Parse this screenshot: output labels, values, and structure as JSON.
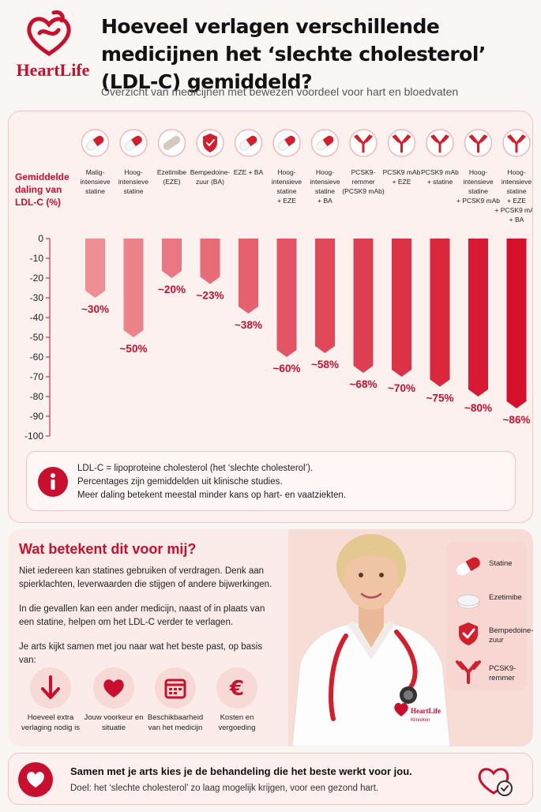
{
  "header": {
    "brand": "HeartLife",
    "title": "Hoeveel verlagen verschillende medicijnen het ‘slechte cholesterol’ (LDL-C) gemiddeld?",
    "subtitle": "Overzicht van medicijnen met bewezen voordeel voor hart en bloedvaten"
  },
  "chart_data": {
    "type": "bar",
    "ylabel": "Gemiddelde daling van LDL-C (%)",
    "ylim": [
      -100,
      0
    ],
    "yticks": [
      0,
      -10,
      -20,
      -30,
      -40,
      -50,
      -60,
      -70,
      -80,
      -90,
      -100
    ],
    "categories": [
      "Matig-intensieve statine",
      "Hoog-intensieve statine",
      "Ezetimibe (EZE)",
      "Bempedoine-zuur (BA)",
      "EZE + BA",
      "Hoog-intensieve statine + EZE",
      "Hoog-intensieve statine + BA",
      "PCSK9-remmer (PCSK9 mAb)",
      "PCSK9 mAb + EZE",
      "PCSK9 mAb + statine",
      "Hoog-intensieve statine + PCSK9 mAb",
      "Hoog-intensieve statine + EZE + PCSK9 mAb + BA"
    ],
    "category_lines": [
      [
        "Matig-",
        "intensieve",
        "statine"
      ],
      [
        "Hoog-",
        "intensieve",
        "statine"
      ],
      [
        "Ezetimibe",
        "(EZE)"
      ],
      [
        "Bempedoine-",
        "zuur (BA)"
      ],
      [
        "EZE + BA"
      ],
      [
        "Hoog-",
        "intensieve",
        "statine",
        "+ EZE"
      ],
      [
        "Hoog-",
        "intensieve",
        "statine",
        "+ BA"
      ],
      [
        "PCSK9-",
        "remmer",
        "(PCSK9 mAb)"
      ],
      [
        "PCSK9 mAb",
        "+ EZE"
      ],
      [
        "PCSK9 mAb",
        "+ statine"
      ],
      [
        "Hoog-",
        "intensieve",
        "statine",
        "+ PCSK9 mAb"
      ],
      [
        "Hoog-",
        "intensieve",
        "statine",
        "+ EZE",
        "+ PCSK9 mAb",
        "+ BA"
      ]
    ],
    "icons": [
      "pill-icon",
      "pill-icon",
      "capsule-icon",
      "shield-icon",
      "pill-icon",
      "pill-icon",
      "pill-icon",
      "antibody-icon",
      "antibody-icon",
      "antibody-icon",
      "antibody-icon",
      "antibody-icon"
    ],
    "values": [
      -30,
      -50,
      -20,
      -23,
      -38,
      -60,
      -58,
      -68,
      -70,
      -75,
      -80,
      -86
    ],
    "data_labels": [
      "~30%",
      "~50%",
      "~20%",
      "~23%",
      "~38%",
      "~60%",
      "~58%",
      "~68%",
      "~70%",
      "~75%",
      "~80%",
      "~86%"
    ],
    "colors": {
      "light": "#ef8e94",
      "dark": "#d5102b",
      "label": "#c8102e"
    }
  },
  "info": {
    "lines": [
      "LDL-C = lipoproteine cholesterol (het ‘slechte cholesterol’).",
      "Percentages zijn gemiddelden uit klinische studies.",
      "Meer daling betekent meestal minder kans op hart- en vaatziekten."
    ]
  },
  "lower": {
    "heading": "Wat betekent dit voor mij?",
    "para1": "Niet iedereen kan statines gebruiken of verdragen. Denk aan spierklachten, leverwaarden die stijgen of andere bijwerkingen.",
    "para2": "In die gevallen kan een ander medicijn, naast of in plaats van een statine, helpen om het LDL-C verder te verlagen.",
    "para3": "Je arts kijkt samen met jou naar wat het beste past, op basis van:",
    "factors": [
      {
        "icon": "arrow-down-icon",
        "label": "Hoeveel extra verlaging nodig is"
      },
      {
        "icon": "heart-icon",
        "label": "Jouw voorkeur en situatie"
      },
      {
        "icon": "calendar-icon",
        "label": "Beschikbaarheid van het medicijn"
      },
      {
        "icon": "euro-icon",
        "label": "Kosten en vergoeding"
      }
    ],
    "coat_brand": "HeartLife",
    "coat_sub": "Klinieken",
    "legend": [
      {
        "icon": "pill-icon",
        "label": "Statine"
      },
      {
        "icon": "capsule-icon",
        "label": "Ezetimibe"
      },
      {
        "icon": "shield-icon",
        "label": "Bempedoine-zuur"
      },
      {
        "icon": "antibody-icon",
        "label": "PCSK9-remmer"
      }
    ]
  },
  "footer": {
    "main": "Samen met je arts kies je de behandeling die het beste werkt voor jou.",
    "sub": "Doel: het ‘slechte cholesterol’ zo laag mogelijk krijgen, voor een gezond hart."
  }
}
